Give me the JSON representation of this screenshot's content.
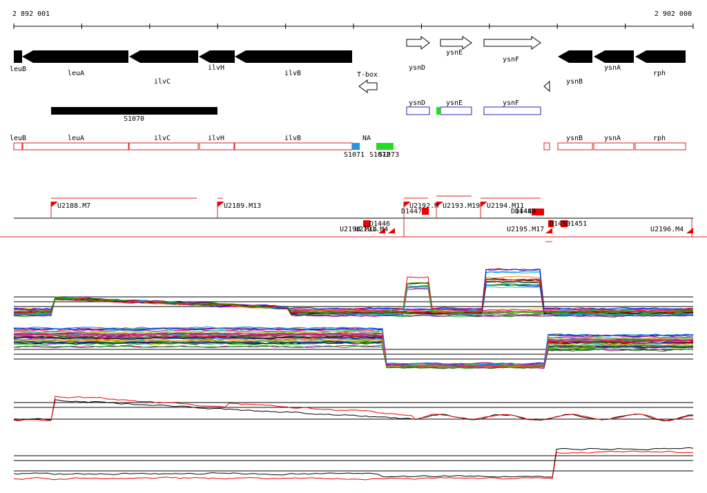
{
  "ruler": {
    "start": "2 892 001",
    "end": "2 902 000"
  },
  "genes": [
    "leuB",
    "leuA",
    "ilvC",
    "ilvH",
    "ilvB",
    "T-box",
    "ysnD",
    "ysnE",
    "ysnF",
    "ysnB",
    "ysnA",
    "rph"
  ],
  "regions": [
    "S1070"
  ],
  "boxes": [
    "ysnD",
    "ysnE",
    "ysnF"
  ],
  "annotations": [
    "leuB",
    "leuA",
    "ilvC",
    "ilvH",
    "ilvB",
    "NA",
    "ysnB",
    "ysnA",
    "rph"
  ],
  "segments": [
    "S1071",
    "S1072",
    "S1073"
  ],
  "transcripts": [
    "U2188.M7",
    "U2189.M13",
    "U2192.M",
    "U2193.M19",
    "U2194.M11",
    "U2190.M14",
    "U2191.M4",
    "U2195.M17",
    "U2196.M4"
  ],
  "breakpoints": [
    "D1446",
    "D1447",
    "D1448",
    "D1449",
    "D1450",
    "D1451"
  ]
}
